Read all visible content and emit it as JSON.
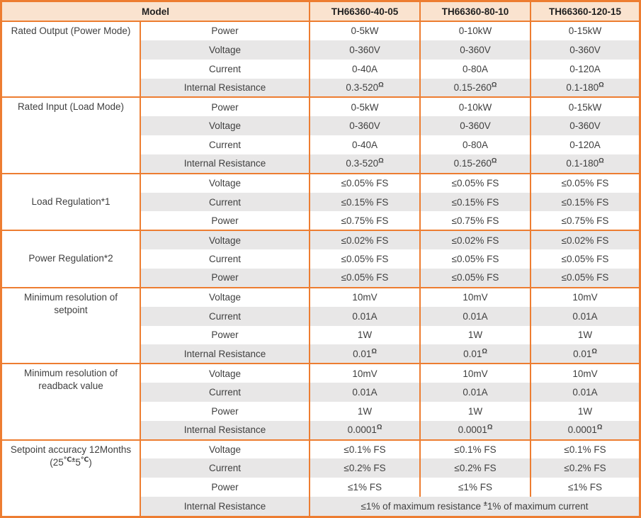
{
  "colors": {
    "accent": "#ED7D31",
    "header_bg": "#FAE3CF",
    "stripe": "#E8E7E7",
    "text": "#3F3F3F",
    "header_text": "#1F1F1F"
  },
  "header": {
    "model_label": "Model",
    "models": [
      "TH66360-40-05",
      "TH66360-80-10",
      "TH66360-120-15"
    ]
  },
  "sections": [
    {
      "lines": [
        "Rated Output (Power Mode)"
      ],
      "rows": [
        {
          "param": "Power",
          "values": [
            "0-5kW",
            "0-10kW",
            "0-15kW"
          ]
        },
        {
          "param": "Voltage",
          "values": [
            "0-360V",
            "0-360V",
            "0-360V"
          ]
        },
        {
          "param": "Current",
          "values": [
            "0-40A",
            "0-80A",
            "0-120A"
          ]
        },
        {
          "param": "Internal Resistance",
          "values": [
            "0.3-520",
            "0.15-260",
            "0.1-180"
          ],
          "sup": "Ω"
        }
      ]
    },
    {
      "lines": [
        "Rated Input (Load Mode)"
      ],
      "rows": [
        {
          "param": "Power",
          "values": [
            "0-5kW",
            "0-10kW",
            "0-15kW"
          ]
        },
        {
          "param": "Voltage",
          "values": [
            "0-360V",
            "0-360V",
            "0-360V"
          ]
        },
        {
          "param": "Current",
          "values": [
            "0-40A",
            "0-80A",
            "0-120A"
          ]
        },
        {
          "param": "Internal Resistance",
          "values": [
            "0.3-520",
            "0.15-260",
            "0.1-180"
          ],
          "sup": "Ω"
        }
      ]
    },
    {
      "lines": [
        "Load Regulation*1"
      ],
      "rows": [
        {
          "param": "Voltage",
          "values": [
            "≤0.05% FS",
            "≤0.05% FS",
            "≤0.05% FS"
          ]
        },
        {
          "param": "Current",
          "values": [
            "≤0.15% FS",
            "≤0.15% FS",
            "≤0.15% FS"
          ]
        },
        {
          "param": "Power",
          "values": [
            "≤0.75% FS",
            "≤0.75% FS",
            "≤0.75% FS"
          ]
        }
      ]
    },
    {
      "lines": [
        "Power Regulation*2"
      ],
      "rows": [
        {
          "param": "Voltage",
          "values": [
            "≤0.02% FS",
            "≤0.02% FS",
            "≤0.02% FS"
          ]
        },
        {
          "param": "Current",
          "values": [
            "≤0.05% FS",
            "≤0.05% FS",
            "≤0.05% FS"
          ]
        },
        {
          "param": "Power",
          "values": [
            "≤0.05% FS",
            "≤0.05% FS",
            "≤0.05% FS"
          ]
        }
      ]
    },
    {
      "lines": [
        "Minimum resolution of",
        "setpoint"
      ],
      "rows": [
        {
          "param": "Voltage",
          "values": [
            "10mV",
            "10mV",
            "10mV"
          ]
        },
        {
          "param": "Current",
          "values": [
            "0.01A",
            "0.01A",
            "0.01A"
          ]
        },
        {
          "param": "Power",
          "values": [
            "1W",
            "1W",
            "1W"
          ]
        },
        {
          "param": "Internal Resistance",
          "values": [
            "0.01",
            "0.01",
            "0.01"
          ],
          "sup": "Ω"
        }
      ]
    },
    {
      "lines": [
        "Minimum resolution of",
        "readback value"
      ],
      "rows": [
        {
          "param": "Voltage",
          "values": [
            "10mV",
            "10mV",
            "10mV"
          ]
        },
        {
          "param": "Current",
          "values": [
            "0.01A",
            "0.01A",
            "0.01A"
          ]
        },
        {
          "param": "Power",
          "values": [
            "1W",
            "1W",
            "1W"
          ]
        },
        {
          "param": "Internal Resistance",
          "values": [
            "0.0001",
            "0.0001",
            "0.0001"
          ],
          "sup": "Ω"
        }
      ]
    },
    {
      "lines": [
        "Setpoint accuracy 12Months"
      ],
      "label2": {
        "pre": "(25",
        "sup1": "℃±",
        "mid": "5",
        "sup2": "℃",
        "post": ")"
      },
      "rows": [
        {
          "param": "Voltage",
          "values": [
            "≤0.1% FS",
            "≤0.1% FS",
            "≤0.1% FS"
          ]
        },
        {
          "param": "Current",
          "values": [
            "≤0.2% FS",
            "≤0.2% FS",
            "≤0.2% FS"
          ]
        },
        {
          "param": "Power",
          "values": [
            "≤1% FS",
            "≤1% FS",
            "≤1% FS"
          ]
        },
        {
          "param": "Internal Resistance",
          "span": {
            "pre": "≤1% of maximum resistance ",
            "sup": "±",
            "post": "1% of maximum current"
          }
        }
      ]
    }
  ]
}
